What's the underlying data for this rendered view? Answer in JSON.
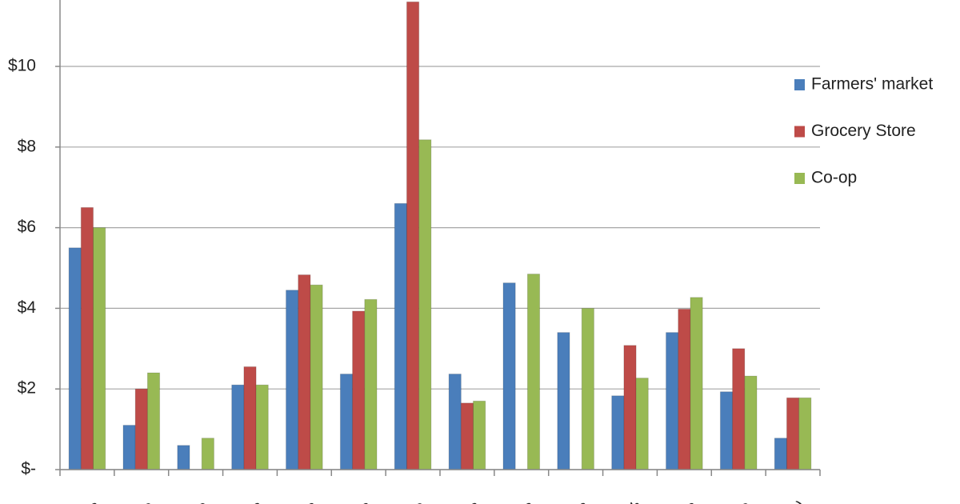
{
  "chart_data": {
    "type": "bar",
    "categories": [
      "es",
      "ne",
      "o",
      "rs",
      "ts",
      "ts",
      "se",
      "es",
      "ns",
      "ns",
      "sh",
      "es",
      "se",
      "h)"
    ],
    "series": [
      {
        "name": "Farmers' market",
        "color": "#4a7ebb",
        "values": [
          5.5,
          1.1,
          0.6,
          2.1,
          4.45,
          2.37,
          6.6,
          2.37,
          4.63,
          3.4,
          1.83,
          3.4,
          1.93,
          0.78
        ]
      },
      {
        "name": "Grocery Store",
        "color": "#be4b48",
        "values": [
          6.5,
          2.0,
          null,
          2.55,
          4.83,
          3.93,
          11.6,
          1.65,
          null,
          null,
          3.08,
          3.98,
          3.0,
          1.78
        ]
      },
      {
        "name": "Co-op",
        "color": "#98b954",
        "values": [
          6.0,
          2.4,
          0.78,
          2.1,
          4.58,
          4.22,
          8.18,
          1.7,
          4.85,
          4.0,
          2.27,
          4.27,
          2.32,
          1.78
        ]
      }
    ],
    "ylim": [
      0,
      12
    ],
    "yticks": [
      {
        "value": 0,
        "label": "$-"
      },
      {
        "value": 2,
        "label": "$2"
      },
      {
        "value": 4,
        "label": "$4"
      },
      {
        "value": 6,
        "label": "$6"
      },
      {
        "value": 8,
        "label": "$8"
      },
      {
        "value": 10,
        "label": "$10"
      }
    ],
    "grid": true,
    "legend": "right"
  }
}
